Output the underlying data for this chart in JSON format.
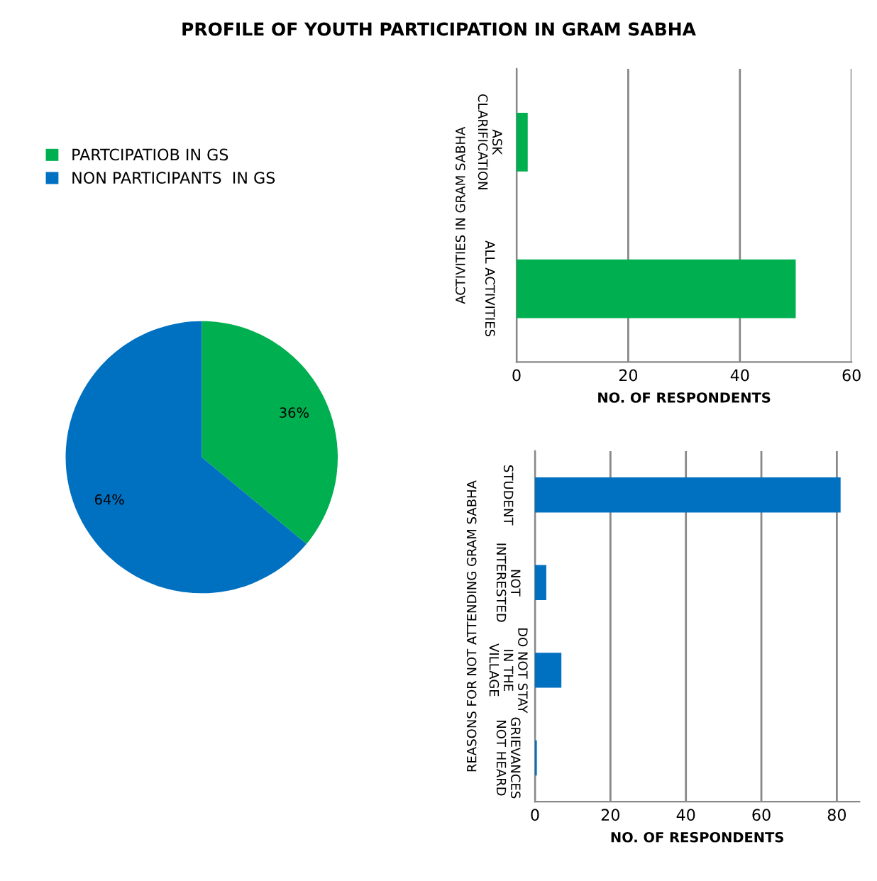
{
  "chart_data": [
    {
      "type": "pie",
      "title": "PROFILE OF YOUTH PARTICIPATION IN GRAM SABHA",
      "categories": [
        "PARTCIPATIOB IN GS",
        "NON PARTICIPANTS  IN GS"
      ],
      "values": [
        36,
        64
      ],
      "colors": [
        "#00b050",
        "#0070c0"
      ],
      "value_labels": [
        "36%",
        "64%"
      ],
      "legend": "top left"
    },
    {
      "type": "bar",
      "orientation": "horizontal",
      "categories": [
        "ASK\nCLARIFICATION",
        "ALL ACTIVITIES"
      ],
      "values": [
        2,
        50
      ],
      "color": "#00b050",
      "xlim": [
        0,
        60
      ],
      "xticks": [
        0,
        20,
        40,
        60
      ],
      "xlabel": "NO. OF RESPONDENTS",
      "ylabel": "ACTIVITIES IN GRAM SABHA",
      "grid": "x"
    },
    {
      "type": "bar",
      "orientation": "horizontal",
      "categories": [
        "STUDENT",
        "NOT\nINTERESTED",
        "DO NOT STAY\nIN THE\nVILLAGE",
        "GRIEVANCES\nNOT HEARD"
      ],
      "values": [
        81,
        3,
        7,
        0.5
      ],
      "color": "#0070c0",
      "xlim": [
        0,
        86
      ],
      "xticks": [
        0,
        20,
        40,
        60,
        80
      ],
      "xlabel": "NO. OF RESPONDENTS",
      "ylabel": "REASONS FOR NOT ATTENDING GRAM SABHA",
      "grid": "x"
    }
  ]
}
